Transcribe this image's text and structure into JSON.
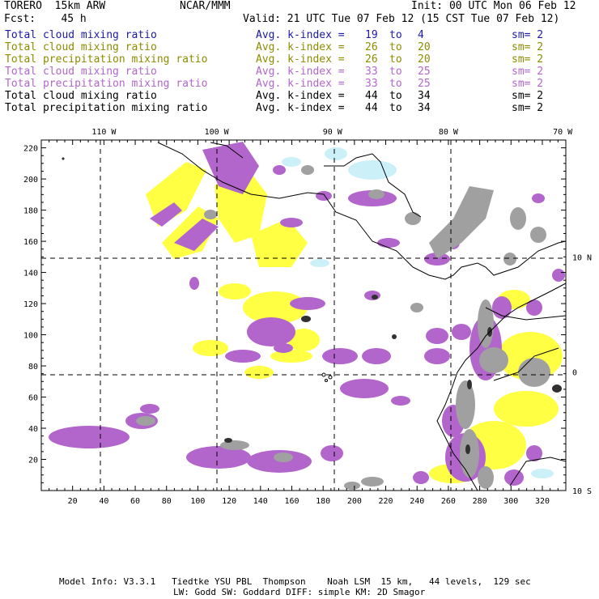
{
  "header": {
    "model": "TORERO  15km ARW",
    "org": "NCAR/MMM",
    "init": "Init: 00 UTC Mon 06 Feb 12",
    "fcst": "Fcst:    45 h",
    "valid": "Valid: 21 UTC Tue 07 Feb 12 (15 CST Tue 07 Feb 12)"
  },
  "legend": [
    {
      "field": "Total cloud mixing ratio",
      "index": "Avg. k-index =",
      "from": "19",
      "to_word": "to",
      "to": "4",
      "sm": "sm= 2",
      "color": "#1a1aa6"
    },
    {
      "field": "Total cloud mixing ratio",
      "index": "Avg. k-index =",
      "from": "26",
      "to_word": "to",
      "to": "20",
      "sm": "sm= 2",
      "color": "#8c8c00"
    },
    {
      "field": "Total precipitation mixing ratio",
      "index": "Avg. k-index =",
      "from": "26",
      "to_word": "to",
      "to": "20",
      "sm": "sm= 2",
      "color": "#8c8c00"
    },
    {
      "field": "Total cloud mixing ratio",
      "index": "Avg. k-index =",
      "from": "33",
      "to_word": "to",
      "to": "25",
      "sm": "sm= 2",
      "color": "#b266cc"
    },
    {
      "field": "Total precipitation mixing ratio",
      "index": "Avg. k-index =",
      "from": "33",
      "to_word": "to",
      "to": "25",
      "sm": "sm= 2",
      "color": "#b266cc"
    },
    {
      "field": "Total cloud mixing ratio",
      "index": "Avg. k-index =",
      "from": "44",
      "to_word": "to",
      "to": "34",
      "sm": "sm= 2",
      "color": "#000000"
    },
    {
      "field": "Total precipitation mixing ratio",
      "index": "Avg. k-index =",
      "from": "44",
      "to_word": "to",
      "to": "34",
      "sm": "sm= 2",
      "color": "#000000"
    }
  ],
  "map": {
    "x_range": [
      0,
      335
    ],
    "y_range": [
      0,
      225
    ],
    "x_ticks": [
      "20",
      "40",
      "60",
      "80",
      "100",
      "120",
      "140",
      "160",
      "180",
      "200",
      "220",
      "240",
      "260",
      "280",
      "300",
      "320"
    ],
    "y_ticks": [
      "20",
      "40",
      "60",
      "80",
      "100",
      "120",
      "140",
      "160",
      "180",
      "200",
      "220"
    ],
    "lon_labels": [
      {
        "text": "110 W",
        "x": 40
      },
      {
        "text": "100 W",
        "x": 112
      },
      {
        "text": "90 W",
        "x": 186
      },
      {
        "text": "80 W",
        "x": 260
      },
      {
        "text": "70 W",
        "x": 333
      }
    ],
    "lat_labels": [
      {
        "text": "10 N",
        "y": 150
      },
      {
        "text": "0",
        "y": 76
      },
      {
        "text": "10 S",
        "y": 0
      }
    ],
    "colors": {
      "yellow": "#ffff44",
      "purple": "#b266cc",
      "gray": "#a0a0a0",
      "dark": "#303030",
      "cyan": "#ccf0f8"
    }
  },
  "footer": {
    "line1": "Model Info: V3.3.1   Tiedtke YSU PBL  Thompson    Noah LSM  15 km,   44 levels,  129 sec",
    "line2": "LW: Godd SW: Goddard DIFF: simple KM: 2D Smagor"
  }
}
